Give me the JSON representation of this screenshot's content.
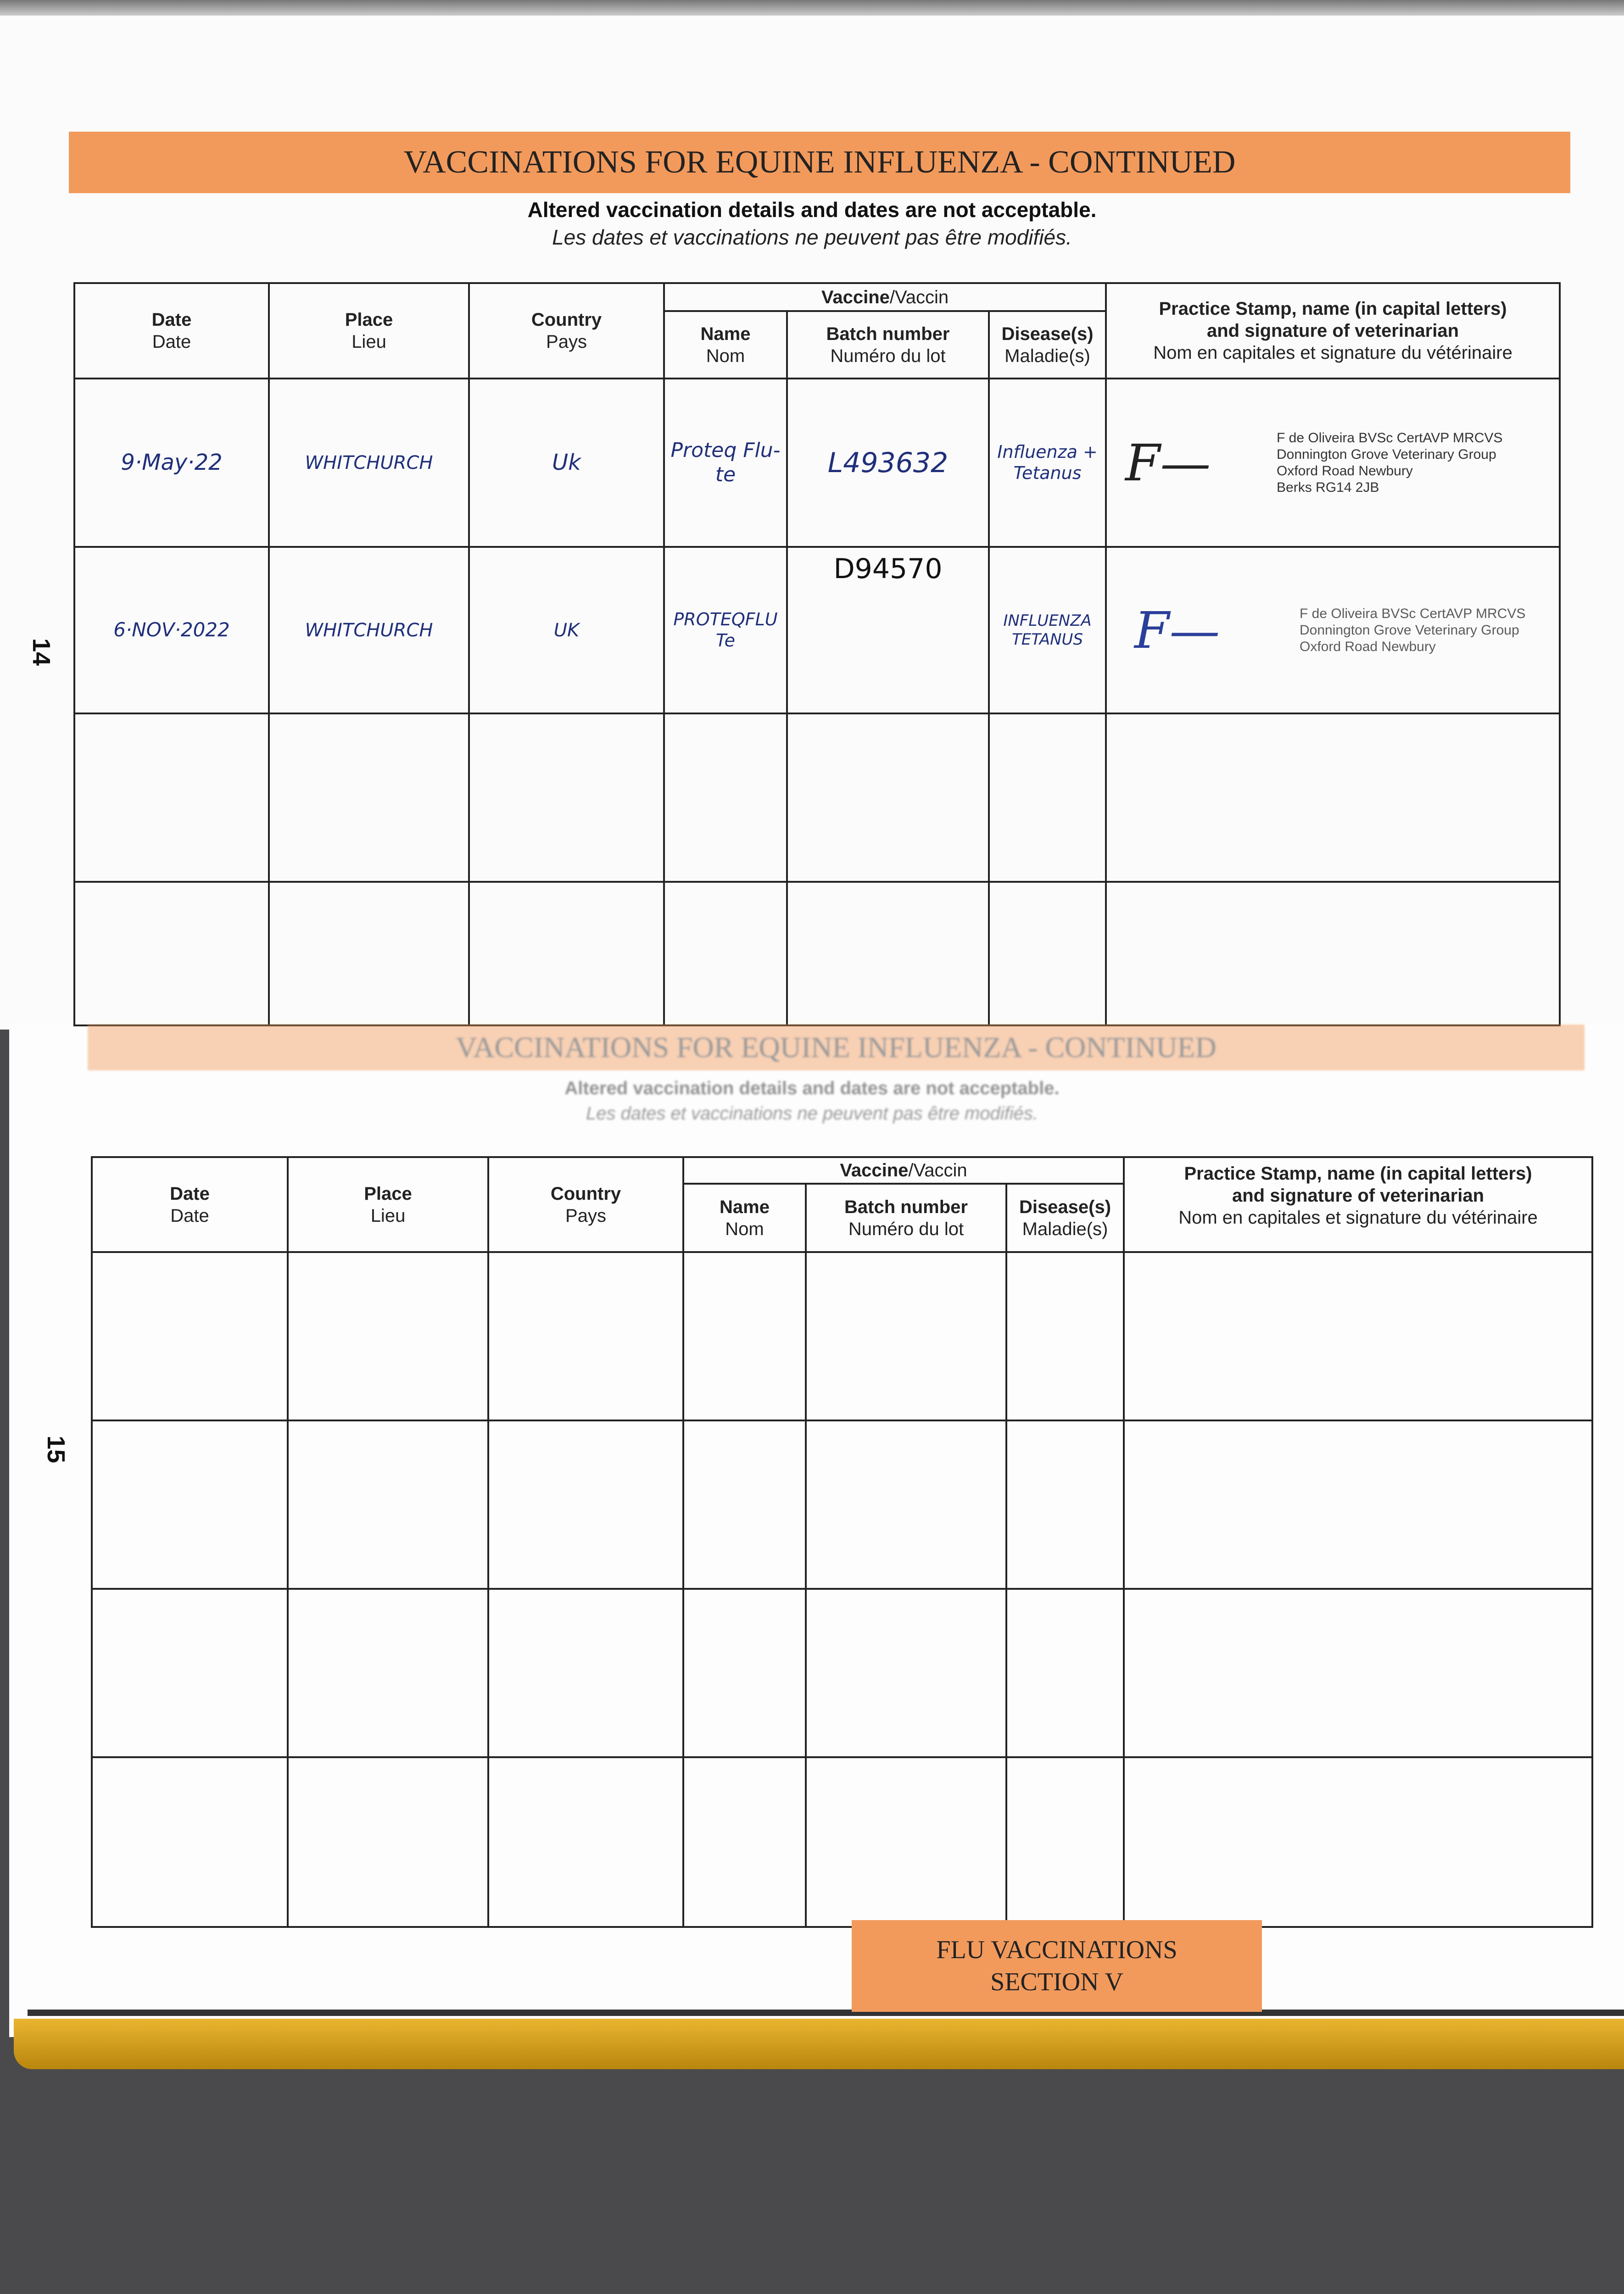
{
  "header": {
    "title": "VACCINATIONS FOR EQUINE INFLUENZA - CONTINUED",
    "notice_en": "Altered vaccination details and dates are not acceptable.",
    "notice_fr": "Les dates et vaccinations ne peuvent pas être modifiés."
  },
  "columns": {
    "date": "Date",
    "date_fr": "Date",
    "place": "Place",
    "place_fr": "Lieu",
    "country": "Country",
    "country_fr": "Pays",
    "vaccine": "Vaccine",
    "vaccine_fr": "/Vaccin",
    "name": "Name",
    "name_fr": "Nom",
    "batch": "Batch number",
    "batch_fr": "Numéro du lot",
    "disease": "Disease(s)",
    "disease_fr": "Maladie(s)",
    "stamp1": "Practice Stamp, name (in capital letters)",
    "stamp2": "and signature of veterinarian",
    "stamp_fr": "Nom en capitales et signature du vétérinaire"
  },
  "page14": {
    "page_number": "14",
    "rows": [
      {
        "date": "9·May·22",
        "place": "WHITCHURCH",
        "country": "Uk",
        "name": "Proteq Flu-te",
        "batch": "L493632",
        "disease": "Influenza + Tetanus",
        "stamp": [
          "F de Oliveira BVSc CertAVP MRCVS",
          "Donnington Grove Veterinary Group",
          "Oxford Road Newbury",
          "Berks RG14 2JB"
        ]
      },
      {
        "date": "6·NOV·2022",
        "place": "WHITCHURCH",
        "country": "UK",
        "name": "PROTEQFLU Te",
        "batch": "D94570",
        "disease": "INFLUENZA TETANUS",
        "stamp": [
          "F de Oliveira BVSc CertAVP MRCVS",
          "Donnington Grove Veterinary Group",
          "Oxford Road Newbury",
          ""
        ]
      },
      {},
      {}
    ]
  },
  "page15": {
    "page_number": "15",
    "rows": [
      {},
      {},
      {},
      {}
    ]
  },
  "footer": {
    "section_line1": "FLU VACCINATIONS",
    "section_line2": "SECTION V"
  },
  "colors": {
    "orange": "#f29a5c",
    "ink_blue": "#1f2f7a",
    "gold_edge": "#e9b530"
  }
}
